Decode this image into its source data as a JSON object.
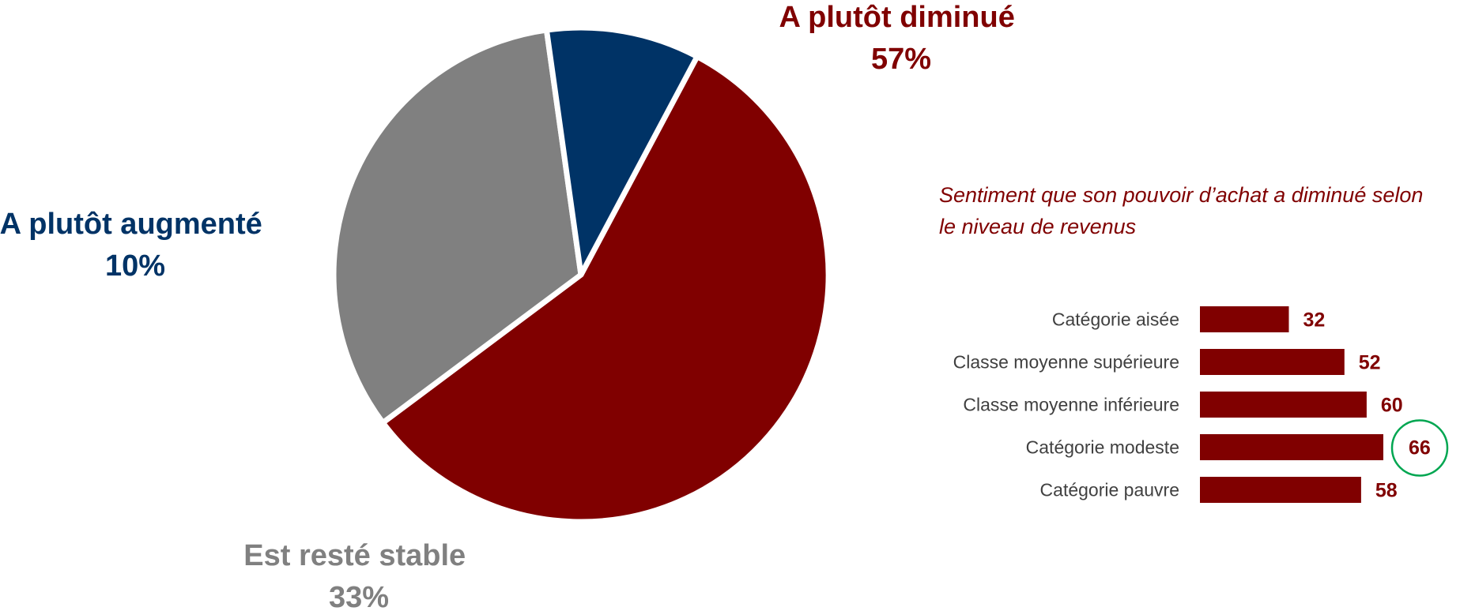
{
  "chart_data": [
    {
      "type": "pie",
      "slices": [
        {
          "label": "A plutôt diminué",
          "value": 57,
          "value_label": "57%",
          "color": "#800000"
        },
        {
          "label": "Est resté stable",
          "value": 33,
          "value_label": "33%",
          "color": "#808080"
        },
        {
          "label": "A plutôt augmenté",
          "value": 10,
          "value_label": "10%",
          "color": "#003366"
        }
      ]
    },
    {
      "type": "bar",
      "orientation": "horizontal",
      "title": "Sentiment que son pouvoir d’achat a diminué selon le niveau de revenus",
      "title_lines": [
        "Sentiment que son pouvoir d’achat a diminué selon",
        "le niveau de revenus"
      ],
      "categories": [
        "Catégorie aisée",
        "Classe moyenne supérieure",
        "Classe moyenne inférieure",
        "Catégorie modeste",
        "Catégorie pauvre"
      ],
      "values": [
        32,
        52,
        60,
        66,
        58
      ],
      "value_labels": [
        "32",
        "52",
        "60",
        "66",
        "58"
      ],
      "highlighted_category": "Catégorie modeste",
      "highlight_color": "#00A651",
      "bar_color": "#800000",
      "xlim": [
        0,
        66
      ]
    }
  ]
}
